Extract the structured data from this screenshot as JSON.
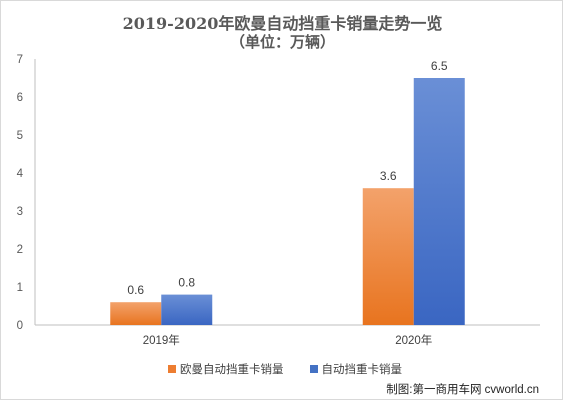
{
  "chart_data": {
    "type": "bar",
    "title": "2019-2020年欧曼自动挡重卡销量走势一览",
    "subtitle": "（单位：万辆）",
    "categories": [
      "2019年",
      "2020年"
    ],
    "series": [
      {
        "name": "欧曼自动挡重卡销量",
        "values": [
          0.6,
          3.6
        ],
        "labels": [
          "0.6",
          "3.6"
        ],
        "color": "#ed7d31"
      },
      {
        "name": "自动挡重卡销量",
        "values": [
          0.8,
          6.5
        ],
        "labels": [
          "0.8",
          "6.5"
        ],
        "color": "#4472c4"
      }
    ],
    "ylim": [
      0,
      7
    ],
    "yticks": [
      "0",
      "1",
      "2",
      "3",
      "4",
      "5",
      "6",
      "7"
    ],
    "grid": false,
    "legend": "bottom"
  },
  "credit": "制图:第一商用车网 cvworld.cn"
}
